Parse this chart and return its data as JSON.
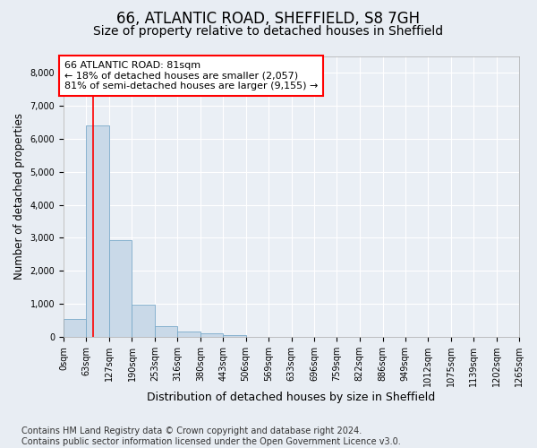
{
  "title1": "66, ATLANTIC ROAD, SHEFFIELD, S8 7GH",
  "title2": "Size of property relative to detached houses in Sheffield",
  "xlabel": "Distribution of detached houses by size in Sheffield",
  "ylabel": "Number of detached properties",
  "footnote": "Contains HM Land Registry data © Crown copyright and database right 2024.\nContains public sector information licensed under the Open Government Licence v3.0.",
  "bin_edges": [
    0,
    63,
    127,
    190,
    253,
    316,
    380,
    443,
    506,
    569,
    633,
    696,
    759,
    822,
    886,
    949,
    1012,
    1075,
    1139,
    1202,
    1265
  ],
  "bin_counts": [
    550,
    6400,
    2920,
    970,
    330,
    160,
    110,
    70,
    0,
    0,
    0,
    0,
    0,
    0,
    0,
    0,
    0,
    0,
    0,
    0
  ],
  "bar_color": "#c9d9e8",
  "bar_edgecolor": "#7aaaca",
  "vline_x": 81,
  "vline_color": "red",
  "annotation_text": "66 ATLANTIC ROAD: 81sqm\n← 18% of detached houses are smaller (2,057)\n81% of semi-detached houses are larger (9,155) →",
  "bg_color": "#e8edf3",
  "plot_bg_color": "#eaeff5",
  "ylim": [
    0,
    8500
  ],
  "xlim": [
    0,
    1265
  ],
  "yticks": [
    0,
    1000,
    2000,
    3000,
    4000,
    5000,
    6000,
    7000,
    8000
  ],
  "title1_fontsize": 12,
  "title2_fontsize": 10,
  "xlabel_fontsize": 9,
  "ylabel_fontsize": 8.5,
  "annotation_fontsize": 8,
  "footnote_fontsize": 7,
  "tick_fontsize": 7
}
